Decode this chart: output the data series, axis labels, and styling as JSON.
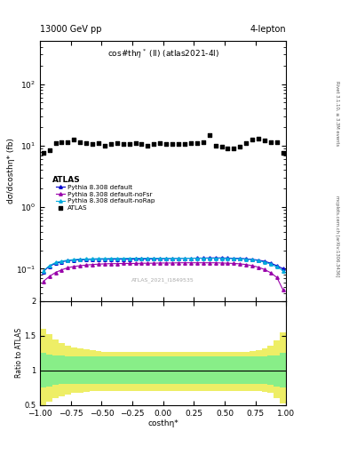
{
  "title_top_left": "13000 GeV pp",
  "title_top_right": "4-lepton",
  "plot_title": "cos#thη* (ll) (atlas2021-4l)",
  "xlabel": "costhη*",
  "ylabel_main": "dσ/dcosthη* (fb)",
  "ylabel_ratio": "Ratio to ATLAS",
  "right_label_top": "Rivet 3.1.10, ≥ 3.3M events",
  "right_label_bottom": "mcplots.cern.ch [arXiv:1306.3436]",
  "watermark": "ATLAS_2021_I1849535",
  "ylim_main": [
    0.03,
    500
  ],
  "ylim_ratio": [
    0.5,
    2.0
  ],
  "xlim": [
    -1.0,
    1.0
  ],
  "atlas_x": [
    -0.975,
    -0.925,
    -0.875,
    -0.825,
    -0.775,
    -0.725,
    -0.675,
    -0.625,
    -0.575,
    -0.525,
    -0.475,
    -0.425,
    -0.375,
    -0.325,
    -0.275,
    -0.225,
    -0.175,
    -0.125,
    -0.075,
    -0.025,
    0.025,
    0.075,
    0.125,
    0.175,
    0.225,
    0.275,
    0.325,
    0.375,
    0.425,
    0.475,
    0.525,
    0.575,
    0.625,
    0.675,
    0.725,
    0.775,
    0.825,
    0.875,
    0.925,
    0.975
  ],
  "atlas_y": [
    7.5,
    8.5,
    11.0,
    11.5,
    11.5,
    12.5,
    11.5,
    11.0,
    10.5,
    11.0,
    10.0,
    10.5,
    11.0,
    10.5,
    10.5,
    11.0,
    10.5,
    10.0,
    10.5,
    11.0,
    10.5,
    10.5,
    10.5,
    10.5,
    11.0,
    11.0,
    11.5,
    15.0,
    10.0,
    9.5,
    9.0,
    9.0,
    9.5,
    11.0,
    12.5,
    13.0,
    12.0,
    11.5,
    11.5,
    7.5
  ],
  "pythia_default_x": [
    -0.975,
    -0.925,
    -0.875,
    -0.825,
    -0.775,
    -0.725,
    -0.675,
    -0.625,
    -0.575,
    -0.525,
    -0.475,
    -0.425,
    -0.375,
    -0.325,
    -0.275,
    -0.225,
    -0.175,
    -0.125,
    -0.075,
    -0.025,
    0.025,
    0.075,
    0.125,
    0.175,
    0.225,
    0.275,
    0.325,
    0.375,
    0.425,
    0.475,
    0.525,
    0.575,
    0.625,
    0.675,
    0.725,
    0.775,
    0.825,
    0.875,
    0.925,
    0.975
  ],
  "pythia_default_y": [
    0.09,
    0.11,
    0.122,
    0.13,
    0.135,
    0.138,
    0.14,
    0.141,
    0.142,
    0.143,
    0.143,
    0.143,
    0.143,
    0.143,
    0.143,
    0.144,
    0.144,
    0.145,
    0.145,
    0.146,
    0.146,
    0.147,
    0.147,
    0.148,
    0.148,
    0.149,
    0.149,
    0.15,
    0.15,
    0.15,
    0.149,
    0.148,
    0.147,
    0.145,
    0.142,
    0.138,
    0.132,
    0.123,
    0.112,
    0.1
  ],
  "pythia_noFsr_x": [
    -0.975,
    -0.925,
    -0.875,
    -0.825,
    -0.775,
    -0.725,
    -0.675,
    -0.625,
    -0.575,
    -0.525,
    -0.475,
    -0.425,
    -0.375,
    -0.325,
    -0.275,
    -0.225,
    -0.175,
    -0.125,
    -0.075,
    -0.025,
    0.025,
    0.075,
    0.125,
    0.175,
    0.225,
    0.275,
    0.325,
    0.375,
    0.425,
    0.475,
    0.525,
    0.575,
    0.625,
    0.675,
    0.725,
    0.775,
    0.825,
    0.875,
    0.925,
    0.975
  ],
  "pythia_noFsr_y": [
    0.062,
    0.075,
    0.087,
    0.096,
    0.104,
    0.109,
    0.112,
    0.115,
    0.117,
    0.119,
    0.12,
    0.121,
    0.121,
    0.122,
    0.122,
    0.122,
    0.123,
    0.123,
    0.123,
    0.124,
    0.124,
    0.124,
    0.125,
    0.125,
    0.125,
    0.125,
    0.125,
    0.125,
    0.125,
    0.124,
    0.123,
    0.122,
    0.12,
    0.117,
    0.112,
    0.106,
    0.097,
    0.086,
    0.072,
    0.045
  ],
  "pythia_noRap_x": [
    -0.975,
    -0.925,
    -0.875,
    -0.825,
    -0.775,
    -0.725,
    -0.675,
    -0.625,
    -0.575,
    -0.525,
    -0.475,
    -0.425,
    -0.375,
    -0.325,
    -0.275,
    -0.225,
    -0.175,
    -0.125,
    -0.075,
    -0.025,
    0.025,
    0.075,
    0.125,
    0.175,
    0.225,
    0.275,
    0.325,
    0.375,
    0.425,
    0.475,
    0.525,
    0.575,
    0.625,
    0.675,
    0.725,
    0.775,
    0.825,
    0.875,
    0.925,
    0.975
  ],
  "pythia_noRap_y": [
    0.092,
    0.112,
    0.126,
    0.133,
    0.138,
    0.141,
    0.143,
    0.144,
    0.145,
    0.146,
    0.146,
    0.147,
    0.147,
    0.147,
    0.148,
    0.148,
    0.148,
    0.148,
    0.148,
    0.148,
    0.148,
    0.148,
    0.148,
    0.148,
    0.148,
    0.148,
    0.148,
    0.148,
    0.148,
    0.148,
    0.147,
    0.146,
    0.145,
    0.143,
    0.14,
    0.135,
    0.128,
    0.119,
    0.107,
    0.093
  ],
  "green_band_upper": [
    1.25,
    1.23,
    1.22,
    1.21,
    1.2,
    1.2,
    1.2,
    1.2,
    1.2,
    1.2,
    1.2,
    1.2,
    1.2,
    1.2,
    1.2,
    1.2,
    1.2,
    1.2,
    1.2,
    1.2,
    1.2,
    1.2,
    1.2,
    1.2,
    1.2,
    1.2,
    1.2,
    1.2,
    1.2,
    1.2,
    1.2,
    1.2,
    1.2,
    1.2,
    1.2,
    1.2,
    1.2,
    1.21,
    1.22,
    1.25
  ],
  "green_band_lower": [
    0.75,
    0.77,
    0.79,
    0.8,
    0.8,
    0.8,
    0.8,
    0.8,
    0.8,
    0.8,
    0.8,
    0.8,
    0.8,
    0.8,
    0.8,
    0.8,
    0.8,
    0.8,
    0.8,
    0.8,
    0.8,
    0.8,
    0.8,
    0.8,
    0.8,
    0.8,
    0.8,
    0.8,
    0.8,
    0.8,
    0.8,
    0.8,
    0.8,
    0.8,
    0.8,
    0.8,
    0.8,
    0.79,
    0.77,
    0.75
  ],
  "yellow_band_upper": [
    1.6,
    1.52,
    1.44,
    1.39,
    1.36,
    1.33,
    1.31,
    1.3,
    1.29,
    1.28,
    1.27,
    1.27,
    1.27,
    1.27,
    1.27,
    1.27,
    1.27,
    1.27,
    1.27,
    1.27,
    1.27,
    1.27,
    1.27,
    1.27,
    1.27,
    1.27,
    1.27,
    1.27,
    1.27,
    1.27,
    1.27,
    1.27,
    1.27,
    1.27,
    1.28,
    1.29,
    1.31,
    1.35,
    1.43,
    1.55
  ],
  "yellow_band_lower": [
    0.5,
    0.55,
    0.6,
    0.63,
    0.65,
    0.67,
    0.68,
    0.69,
    0.7,
    0.7,
    0.7,
    0.7,
    0.7,
    0.7,
    0.7,
    0.7,
    0.7,
    0.7,
    0.7,
    0.7,
    0.7,
    0.7,
    0.7,
    0.7,
    0.7,
    0.7,
    0.7,
    0.7,
    0.7,
    0.7,
    0.7,
    0.7,
    0.7,
    0.7,
    0.7,
    0.7,
    0.69,
    0.67,
    0.6,
    0.52
  ],
  "color_atlas": "#000000",
  "color_pythia_default": "#0000cc",
  "color_pythia_noFsr": "#9900aa",
  "color_pythia_noRap": "#00aadd",
  "color_green_band": "#88ee88",
  "color_yellow_band": "#eeee66"
}
